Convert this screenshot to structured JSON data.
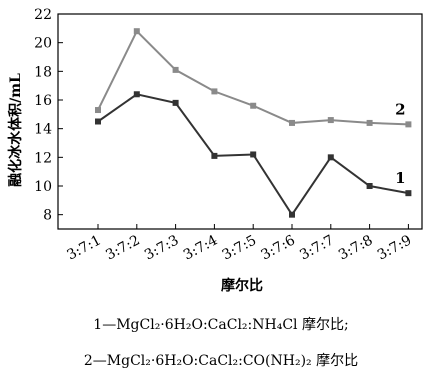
{
  "chart_data": {
    "type": "line",
    "title": "",
    "xlabel": "摩尔比",
    "ylabel": "融化冰水体积/mL",
    "ylim": [
      7,
      22
    ],
    "yticks": [
      8,
      10,
      12,
      14,
      16,
      18,
      20,
      22
    ],
    "categories": [
      "3:7:1",
      "3:7:2",
      "3:7:3",
      "3:7:4",
      "3:7:5",
      "3:7:6",
      "3:7:7",
      "3:7:8",
      "3:7:9"
    ],
    "series": [
      {
        "name": "1",
        "color": "#333333",
        "values": [
          14.5,
          16.4,
          15.8,
          12.1,
          12.2,
          8.0,
          12.0,
          10.0,
          9.5
        ]
      },
      {
        "name": "2",
        "color": "#8a8a8a",
        "values": [
          15.3,
          20.8,
          18.1,
          16.6,
          15.6,
          14.4,
          14.6,
          14.4,
          14.3
        ]
      }
    ],
    "grid": false,
    "legend": "labels at line ends"
  },
  "captions": {
    "line1": "1—MgCl₂·6H₂O:CaCl₂:NH₄Cl 摩尔比;",
    "line2": "2—MgCl₂·6H₂O:CaCl₂:CO(NH₂)₂ 摩尔比"
  }
}
